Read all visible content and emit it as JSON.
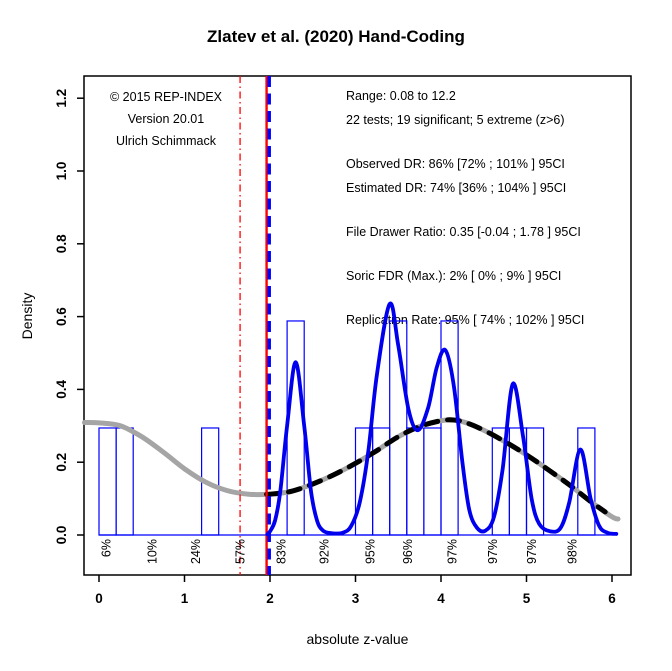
{
  "chart_data": {
    "type": "histogram+density (z-curve plot)",
    "title": "Zlatev et al. (2020) Hand-Coding",
    "xlabel": "absolute z-value",
    "ylabel": "Density",
    "xlim": [
      -0.175,
      6.22
    ],
    "ylim": [
      -0.11,
      1.26
    ],
    "grid": false,
    "x_ticks": [
      0,
      1,
      2,
      3,
      4,
      5,
      6
    ],
    "x_tick_labels": [
      "0",
      "1",
      "2",
      "3",
      "4",
      "5",
      "6"
    ],
    "y_ticks": [
      0.0,
      0.2,
      0.4,
      0.6,
      0.8,
      1.0,
      1.2
    ],
    "y_tick_labels": [
      "0.0",
      "0.2",
      "0.4",
      "0.6",
      "0.8",
      "1.0",
      "1.2"
    ],
    "colors": {
      "histogram": "#0000FF",
      "observed_density": "#0000EE",
      "predicted_density_gray": "#A5A5A5",
      "predicted_density_dash": "#000000",
      "significance_line": "#FF0000",
      "significance_line_dashed": "#0000FF",
      "marginal_line": "#FF0000",
      "text": "#000000"
    },
    "bars": [
      {
        "from": 0.0,
        "to": 0.2,
        "density": 0.294
      },
      {
        "from": 0.2,
        "to": 0.4,
        "density": 0.294
      },
      {
        "from": 1.2,
        "to": 1.4,
        "density": 0.294
      },
      {
        "from": 2.2,
        "to": 2.4,
        "density": 0.588
      },
      {
        "from": 3.0,
        "to": 3.2,
        "density": 0.294
      },
      {
        "from": 3.2,
        "to": 3.4,
        "density": 0.294
      },
      {
        "from": 3.4,
        "to": 3.6,
        "density": 0.588
      },
      {
        "from": 3.6,
        "to": 3.8,
        "density": 0.294
      },
      {
        "from": 3.8,
        "to": 4.0,
        "density": 0.294
      },
      {
        "from": 4.0,
        "to": 4.2,
        "density": 0.588
      },
      {
        "from": 4.6,
        "to": 4.8,
        "density": 0.294
      },
      {
        "from": 4.8,
        "to": 5.0,
        "density": 0.294
      },
      {
        "from": 5.0,
        "to": 5.2,
        "density": 0.294
      },
      {
        "from": 5.6,
        "to": 5.8,
        "density": 0.294
      }
    ],
    "baseline": {
      "from": 0.0,
      "to": 6.02,
      "density": 0.0
    },
    "power_labels": [
      {
        "z": 0.08,
        "label": "6%"
      },
      {
        "z": 0.62,
        "label": "10%"
      },
      {
        "z": 1.13,
        "label": "24%"
      },
      {
        "z": 1.65,
        "label": "57%"
      },
      {
        "z": 2.13,
        "label": "83%"
      },
      {
        "z": 2.63,
        "label": "92%"
      },
      {
        "z": 3.17,
        "label": "95%"
      },
      {
        "z": 3.61,
        "label": "96%"
      },
      {
        "z": 4.13,
        "label": "97%"
      },
      {
        "z": 4.6,
        "label": "97%"
      },
      {
        "z": 5.06,
        "label": "97%"
      },
      {
        "z": 5.53,
        "label": "98%"
      }
    ],
    "vlines": [
      {
        "name": "marginal-significance",
        "z": 1.65,
        "style": "dash-dot",
        "color": "#FF0000",
        "width": 1.3
      },
      {
        "name": "significance-criterion",
        "z": 1.96,
        "style": "solid",
        "color": "#FF0000",
        "width": 2.4
      },
      {
        "name": "significance-criterion-dashed",
        "z": 1.99,
        "style": "dashed",
        "color": "#0000FF",
        "width": 3.6
      }
    ],
    "observed_density_points": [
      [
        1.97,
        0.002
      ],
      [
        2.0,
        0.01
      ],
      [
        2.06,
        0.04
      ],
      [
        2.12,
        0.12
      ],
      [
        2.2,
        0.3
      ],
      [
        2.3,
        0.475
      ],
      [
        2.4,
        0.3
      ],
      [
        2.48,
        0.12
      ],
      [
        2.55,
        0.04
      ],
      [
        2.62,
        0.012
      ],
      [
        2.72,
        0.005
      ],
      [
        2.85,
        0.006
      ],
      [
        2.95,
        0.025
      ],
      [
        3.05,
        0.09
      ],
      [
        3.15,
        0.23
      ],
      [
        3.25,
        0.44
      ],
      [
        3.4,
        0.635
      ],
      [
        3.5,
        0.52
      ],
      [
        3.62,
        0.345
      ],
      [
        3.73,
        0.288
      ],
      [
        3.85,
        0.35
      ],
      [
        3.95,
        0.46
      ],
      [
        4.05,
        0.508
      ],
      [
        4.15,
        0.41
      ],
      [
        4.25,
        0.2
      ],
      [
        4.33,
        0.07
      ],
      [
        4.42,
        0.02
      ],
      [
        4.52,
        0.012
      ],
      [
        4.62,
        0.05
      ],
      [
        4.72,
        0.18
      ],
      [
        4.84,
        0.415
      ],
      [
        4.96,
        0.27
      ],
      [
        5.06,
        0.1
      ],
      [
        5.15,
        0.03
      ],
      [
        5.28,
        0.01
      ],
      [
        5.4,
        0.02
      ],
      [
        5.5,
        0.09
      ],
      [
        5.63,
        0.235
      ],
      [
        5.75,
        0.1
      ],
      [
        5.85,
        0.025
      ],
      [
        5.95,
        0.006
      ],
      [
        6.05,
        0.003
      ]
    ],
    "predicted_density_points": [
      [
        -0.17,
        0.309
      ],
      [
        0.0,
        0.308
      ],
      [
        0.25,
        0.3
      ],
      [
        0.5,
        0.27
      ],
      [
        0.75,
        0.228
      ],
      [
        1.0,
        0.182
      ],
      [
        1.25,
        0.145
      ],
      [
        1.5,
        0.122
      ],
      [
        1.75,
        0.112
      ],
      [
        2.0,
        0.112
      ],
      [
        2.25,
        0.12
      ],
      [
        2.5,
        0.14
      ],
      [
        2.75,
        0.166
      ],
      [
        3.0,
        0.197
      ],
      [
        3.25,
        0.232
      ],
      [
        3.5,
        0.27
      ],
      [
        3.75,
        0.298
      ],
      [
        4.0,
        0.314
      ],
      [
        4.15,
        0.316
      ],
      [
        4.3,
        0.308
      ],
      [
        4.5,
        0.288
      ],
      [
        4.75,
        0.256
      ],
      [
        5.0,
        0.22
      ],
      [
        5.25,
        0.18
      ],
      [
        5.5,
        0.138
      ],
      [
        5.75,
        0.092
      ],
      [
        6.0,
        0.05
      ],
      [
        6.07,
        0.044
      ]
    ],
    "predicted_dashed_range": [
      1.96,
      5.92
    ],
    "credit_lines": [
      "© 2015 REP-INDEX",
      "Version 20.01",
      "Ulrich Schimmack"
    ],
    "stats_lines": [
      {
        "text": "Range: 0.08 to 12.2",
        "gap_before": false
      },
      {
        "text": "22 tests; 19 significant; 5 extreme (z>6)",
        "gap_before": false
      },
      {
        "text": "Observed DR: 86% [72% ; 101% ] 95CI",
        "gap_before": true
      },
      {
        "text": "Estimated DR: 74% [36% ; 104% ] 95CI",
        "gap_before": false
      },
      {
        "text": "File Drawer Ratio: 0.35 [-0.04 ; 1.78 ] 95CI",
        "gap_before": true
      },
      {
        "text": "Soric FDR (Max.): 2% [ 0% ; 9% ] 95CI",
        "gap_before": true
      },
      {
        "text": "Replication Rate: 95% [ 74% ; 102% ] 95CI",
        "gap_before": true
      }
    ]
  }
}
